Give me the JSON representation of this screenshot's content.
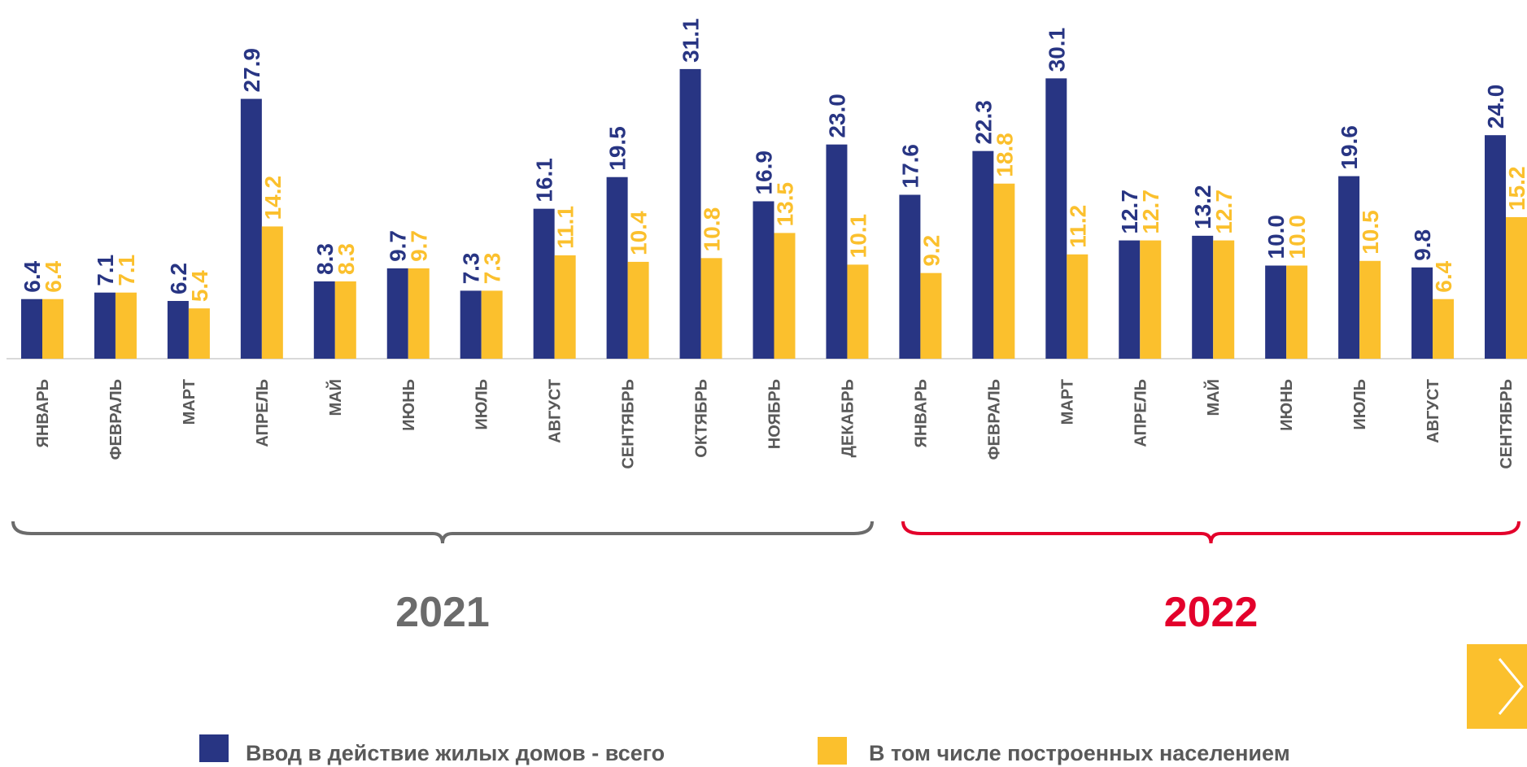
{
  "chart_data": {
    "type": "bar",
    "categories": [
      "ЯНВАРЬ",
      "ФЕВРАЛЬ",
      "МАРТ",
      "АПРЕЛЬ",
      "МАЙ",
      "ИЮНЬ",
      "ИЮЛЬ",
      "АВГУСТ",
      "СЕНТЯБРЬ",
      "ОКТЯБРЬ",
      "НОЯБРЬ",
      "ДЕКАБРЬ",
      "ЯНВАРЬ",
      "ФЕВРАЛЬ",
      "МАРТ",
      "АПРЕЛЬ",
      "МАЙ",
      "ИЮНЬ",
      "ИЮЛЬ",
      "АВГУСТ",
      "СЕНТЯБРЬ"
    ],
    "series": [
      {
        "name": "Ввод в действие жилых домов  - всего",
        "color": "#283583",
        "values": [
          6.4,
          7.1,
          6.2,
          27.9,
          8.3,
          9.7,
          7.3,
          16.1,
          19.5,
          31.1,
          16.9,
          23.0,
          17.6,
          22.3,
          30.1,
          12.7,
          13.2,
          10.0,
          19.6,
          9.8,
          24.0
        ],
        "labels": [
          "6.4",
          "7.1",
          "6.2",
          "27.9",
          "8.3",
          "9.7",
          "7.3",
          "16.1",
          "19.5",
          "31.1",
          "16.9",
          "23.0",
          "17.6",
          "22.3",
          "30.1",
          "12.7",
          "13.2",
          "10.0",
          "19.6",
          "9.8",
          "24.0"
        ]
      },
      {
        "name": "В том числе построенных населением",
        "color": "#fbc02d",
        "values": [
          6.4,
          7.1,
          5.4,
          14.2,
          8.3,
          9.7,
          7.3,
          11.1,
          10.4,
          10.8,
          13.5,
          10.1,
          9.2,
          18.8,
          11.2,
          12.7,
          12.7,
          10.0,
          10.5,
          6.4,
          15.2
        ],
        "labels": [
          "6.4",
          "7.1",
          "5.4",
          "14.2",
          "8.3",
          "9.7",
          "7.3",
          "11.1",
          "10.4",
          "10.8",
          "13.5",
          "10.1",
          "9.2",
          "18.8",
          "11.2",
          "12.7",
          "12.7",
          "10.0",
          "10.5",
          "6.4",
          "15.2"
        ]
      }
    ],
    "groups": [
      {
        "label": "2021",
        "color": "#6b6b6b",
        "from": 0,
        "to": 11
      },
      {
        "label": "2022",
        "color": "#e3002b",
        "from": 12,
        "to": 20
      }
    ],
    "ylim": [
      0,
      32
    ],
    "grid": false,
    "legend": "bottom"
  },
  "navigation": {
    "next_icon": "chevron-right-icon"
  }
}
